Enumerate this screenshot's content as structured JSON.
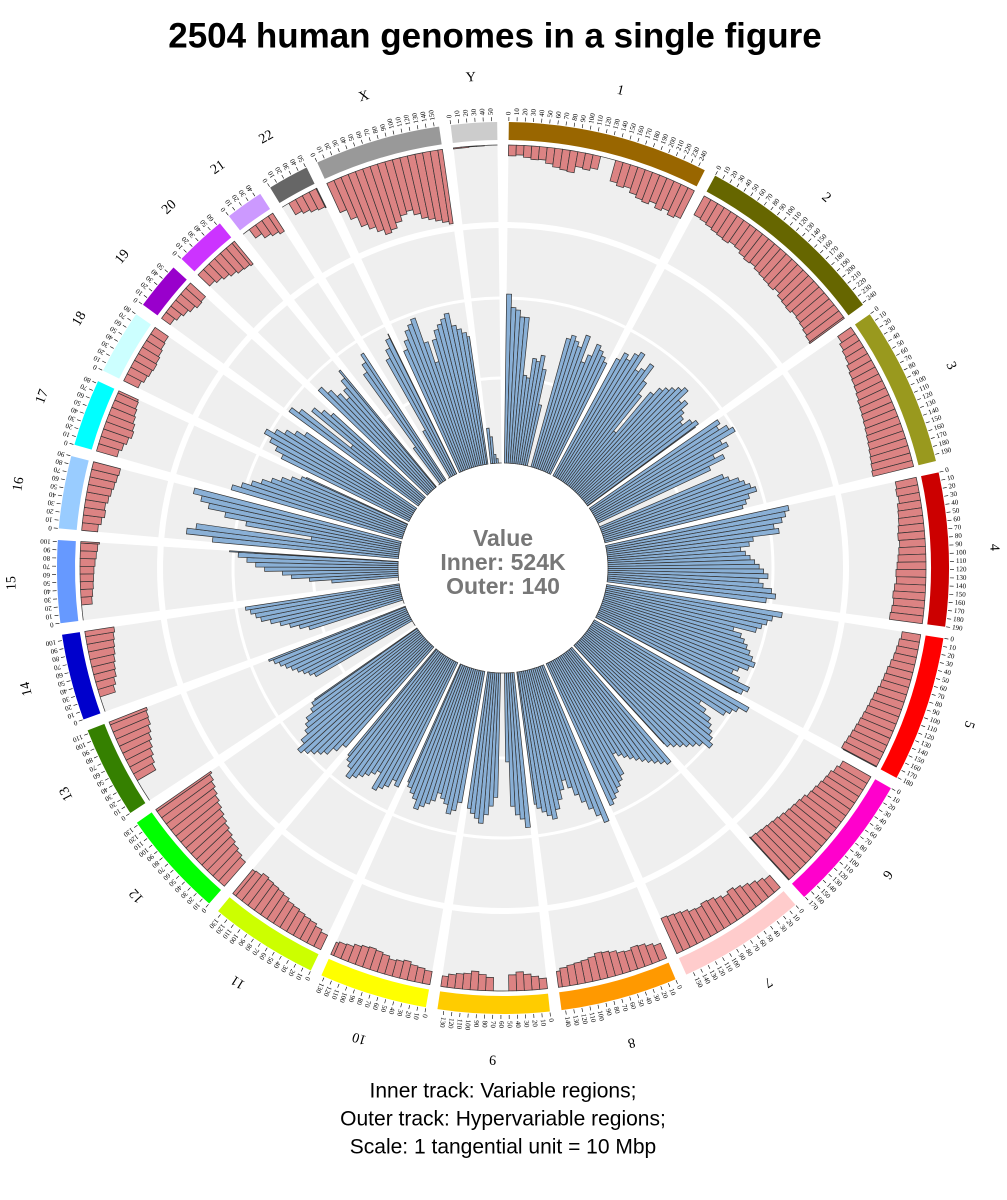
{
  "title": "2504 human genomes in a single figure",
  "chart_data": {
    "type": "circos",
    "center": {
      "title": "Value",
      "inner_scale": {
        "value": 524,
        "label": "Inner: 524K"
      },
      "outer_scale": {
        "value": 140,
        "label": "Outer: 140"
      }
    },
    "inner_color": "#8ab0d6",
    "outer_color": "#dc8383",
    "background_color": "#efefef",
    "chromosomes": [
      {
        "name": "1",
        "color": "#996600",
        "length": 249,
        "ticks": [
          0,
          10,
          20,
          30,
          40,
          50,
          60,
          70,
          80,
          90,
          100,
          110,
          120,
          130,
          140,
          150,
          160,
          170,
          180,
          190,
          200,
          210,
          220,
          230,
          240
        ],
        "inner": [
          380,
          350,
          345,
          330,
          330,
          200,
          195,
          240,
          235,
          250,
          220,
          140,
          0,
          0,
          300,
          310,
          300,
          290,
          320,
          260,
          280,
          310,
          300,
          290,
          280
        ],
        "outer": [
          20,
          18,
          22,
          25,
          24,
          30,
          35,
          38,
          40,
          28,
          30,
          25,
          0,
          0,
          40,
          45,
          42,
          50,
          55,
          58,
          52,
          60,
          55,
          62,
          58
        ]
      },
      {
        "name": "2",
        "color": "#666600",
        "length": 242,
        "ticks": [
          0,
          10,
          20,
          30,
          40,
          50,
          60,
          70,
          80,
          90,
          100,
          110,
          120,
          130,
          140,
          150,
          160,
          170,
          180,
          190,
          200,
          210,
          220,
          230,
          240
        ],
        "inner": [
          300,
          320,
          310,
          330,
          340,
          300,
          310,
          330,
          290,
          260,
          160,
          280,
          300,
          310,
          320,
          330,
          340,
          310,
          320,
          300,
          290,
          280,
          300,
          310,
          300
        ],
        "outer": [
          40,
          42,
          45,
          48,
          50,
          52,
          48,
          50,
          55,
          58,
          56,
          60,
          62,
          64,
          66,
          62,
          68,
          70,
          72,
          68,
          70,
          72,
          75,
          78,
          80
        ]
      },
      {
        "name": "3",
        "color": "#99991e",
        "length": 198,
        "ticks": [
          0,
          10,
          20,
          30,
          40,
          50,
          60,
          70,
          80,
          90,
          100,
          110,
          120,
          130,
          140,
          150,
          160,
          170,
          180,
          190
        ],
        "inner": [
          350,
          340,
          360,
          370,
          330,
          340,
          300,
          320,
          280,
          0,
          0,
          300,
          310,
          330,
          340,
          350,
          360,
          340,
          330,
          320
        ],
        "outer": [
          30,
          35,
          38,
          40,
          45,
          48,
          50,
          52,
          55,
          58,
          60,
          62,
          64,
          66,
          68,
          70,
          72,
          74,
          76,
          78
        ]
      },
      {
        "name": "4",
        "color": "#cc0000",
        "length": 190,
        "ticks": [
          0,
          10,
          20,
          30,
          40,
          50,
          60,
          70,
          80,
          90,
          100,
          110,
          120,
          130,
          140,
          150,
          160,
          170,
          180,
          190
        ],
        "inner": [
          420,
          410,
          400,
          380,
          390,
          330,
          320,
          300,
          310,
          320,
          330,
          340,
          350,
          360,
          340,
          350,
          370,
          380,
          360
        ],
        "outer": [
          40,
          42,
          40,
          44,
          45,
          46,
          48,
          50,
          48,
          50,
          52,
          54,
          56,
          55,
          58,
          60,
          58,
          60,
          62
        ]
      },
      {
        "name": "5",
        "color": "#ff0000",
        "length": 181,
        "ticks": [
          0,
          10,
          20,
          30,
          40,
          50,
          60,
          70,
          80,
          90,
          100,
          110,
          120,
          130,
          140,
          150,
          160,
          170,
          180
        ],
        "inner": [
          400,
          380,
          370,
          360,
          350,
          300,
          320,
          330,
          340,
          350,
          360,
          370,
          360,
          340,
          330,
          350,
          380,
          370,
          360
        ],
        "outer": [
          35,
          38,
          40,
          42,
          45,
          48,
          50,
          52,
          55,
          58,
          60,
          62,
          64,
          66,
          68,
          70,
          72,
          74,
          70
        ]
      },
      {
        "name": "6",
        "color": "#ff00cc",
        "length": 171,
        "ticks": [
          0,
          10,
          20,
          30,
          40,
          50,
          60,
          70,
          80,
          90,
          100,
          110,
          120,
          130,
          140,
          150,
          160,
          170
        ],
        "inner": [
          400,
          380,
          370,
          360,
          300,
          320,
          340,
          350,
          360,
          370,
          380,
          360,
          350,
          340,
          330,
          320,
          310,
          300
        ],
        "outer": [
          60,
          65,
          70,
          72,
          75,
          78,
          80,
          85,
          88,
          90,
          92,
          95,
          98,
          100,
          102,
          104,
          106,
          108
        ]
      },
      {
        "name": "7",
        "color": "#ffcccc",
        "length": 159,
        "ticks": [
          0,
          10,
          20,
          30,
          40,
          50,
          60,
          70,
          80,
          90,
          100,
          110,
          120,
          130,
          140,
          150
        ],
        "inner": [
          340,
          330,
          320,
          310,
          300,
          290,
          280,
          270,
          260,
          250,
          300,
          310,
          320,
          330,
          340,
          350
        ],
        "outer": [
          30,
          35,
          40,
          45,
          50,
          55,
          50,
          55,
          60,
          62,
          58,
          60,
          65,
          68,
          70,
          72
        ]
      },
      {
        "name": "8",
        "color": "#ff9900",
        "length": 145,
        "ticks": [
          0,
          10,
          20,
          30,
          40,
          50,
          60,
          70,
          80,
          90,
          100,
          110,
          120,
          130,
          140
        ],
        "inner": [
          380,
          360,
          340,
          320,
          300,
          280,
          260,
          280,
          300,
          320,
          340,
          330,
          320,
          310,
          300
        ],
        "outer": [
          30,
          35,
          40,
          42,
          38,
          40,
          45,
          48,
          50,
          45,
          42,
          40,
          38,
          35,
          30
        ]
      },
      {
        "name": "9",
        "color": "#ffcc00",
        "length": 138,
        "ticks": [
          0,
          10,
          20,
          30,
          40,
          50,
          60,
          70,
          80,
          90,
          100,
          110,
          120,
          130
        ],
        "inner": [
          350,
          330,
          320,
          300,
          200,
          0,
          0,
          280,
          300,
          320,
          340,
          330,
          320,
          310
        ],
        "outer": [
          20,
          25,
          30,
          35,
          30,
          0,
          0,
          25,
          30,
          35,
          30,
          28,
          25,
          20
        ]
      },
      {
        "name": "10",
        "color": "#ffff00",
        "length": 134,
        "ticks": [
          0,
          10,
          20,
          30,
          40,
          50,
          60,
          70,
          80,
          90,
          100,
          110,
          120,
          130
        ],
        "inner": [
          300,
          320,
          330,
          310,
          300,
          290,
          310,
          320,
          330,
          340,
          320,
          310,
          300,
          290
        ],
        "outer": [
          25,
          28,
          30,
          35,
          32,
          30,
          35,
          38,
          40,
          38,
          35,
          30,
          28,
          25
        ]
      },
      {
        "name": "11",
        "color": "#ccff00",
        "length": 135,
        "ticks": [
          0,
          10,
          20,
          30,
          40,
          50,
          60,
          70,
          80,
          90,
          100,
          110,
          120,
          130
        ],
        "inner": [
          310,
          300,
          320,
          330,
          340,
          300,
          310,
          320,
          330,
          340,
          350,
          330,
          320,
          310
        ],
        "outer": [
          30,
          35,
          40,
          42,
          45,
          48,
          50,
          55,
          58,
          60,
          62,
          65,
          60,
          58
        ]
      },
      {
        "name": "12",
        "color": "#00ff00",
        "length": 133,
        "ticks": [
          0,
          10,
          20,
          30,
          40,
          50,
          60,
          70,
          80,
          90,
          100,
          110,
          120,
          130
        ],
        "inner": [
          300,
          320,
          340,
          350,
          360,
          370,
          380,
          360,
          340,
          330,
          320,
          300,
          290,
          280
        ],
        "outer": [
          60,
          65,
          70,
          75,
          80,
          85,
          90,
          95,
          100,
          105,
          110,
          115,
          120,
          125
        ]
      },
      {
        "name": "13",
        "color": "#358000",
        "length": 114,
        "ticks": [
          0,
          10,
          20,
          30,
          40,
          50,
          60,
          70,
          80,
          90,
          100,
          110
        ],
        "inner": [
          0,
          0,
          0,
          250,
          260,
          270,
          280,
          290,
          300,
          310,
          320,
          330
        ],
        "outer": [
          0,
          0,
          0,
          40,
          45,
          50,
          55,
          60,
          65,
          70,
          72,
          75
        ]
      },
      {
        "name": "14",
        "color": "#0000cc",
        "length": 107,
        "ticks": [
          0,
          10,
          20,
          30,
          40,
          50,
          60,
          70,
          80,
          90,
          100
        ],
        "inner": [
          0,
          0,
          220,
          240,
          260,
          280,
          300,
          320,
          330,
          340,
          350
        ],
        "outer": [
          0,
          0,
          30,
          35,
          40,
          42,
          45,
          48,
          50,
          52,
          55
        ]
      },
      {
        "name": "15",
        "color": "#6699ff",
        "length": 102,
        "ticks": [
          0,
          10,
          20,
          30,
          40,
          50,
          60,
          70,
          80,
          90,
          100
        ],
        "inner": [
          0,
          0,
          150,
          200,
          240,
          260,
          300,
          320,
          340,
          360,
          380
        ],
        "outer": [
          0,
          0,
          20,
          22,
          24,
          25,
          26,
          28,
          30,
          32,
          35
        ]
      },
      {
        "name": "16",
        "color": "#99ccff",
        "length": 90,
        "ticks": [
          0,
          10,
          20,
          30,
          40,
          50,
          60,
          70,
          80,
          90
        ],
        "inner": [
          420,
          480,
          460,
          200,
          350,
          400,
          440,
          460,
          480
        ],
        "outer": [
          30,
          35,
          40,
          38,
          42,
          45,
          48,
          50,
          52
        ]
      },
      {
        "name": "17",
        "color": "#00ffff",
        "length": 83,
        "ticks": [
          0,
          10,
          20,
          30,
          40,
          50,
          60,
          70,
          80
        ],
        "inner": [
          400,
          380,
          360,
          340,
          320,
          300,
          280,
          260,
          250
        ],
        "outer": [
          40,
          45,
          50,
          55,
          52,
          48,
          45,
          42,
          40
        ]
      },
      {
        "name": "18",
        "color": "#ccffff",
        "length": 80,
        "ticks": [
          0,
          10,
          20,
          30,
          40,
          50,
          60,
          70,
          80
        ],
        "inner": [
          320,
          340,
          360,
          380,
          360,
          340,
          320,
          300
        ],
        "outer": [
          30,
          35,
          38,
          40,
          38,
          35,
          32,
          30
        ]
      },
      {
        "name": "19",
        "color": "#9900cc",
        "length": 59,
        "ticks": [
          0,
          10,
          20,
          30,
          40,
          50
        ],
        "inner": [
          360,
          340,
          200,
          320,
          300,
          280
        ],
        "outer": [
          20,
          25,
          30,
          35,
          40,
          38
        ]
      },
      {
        "name": "20",
        "color": "#cc33ff",
        "length": 64,
        "ticks": [
          0,
          10,
          20,
          30,
          40,
          50,
          60
        ],
        "inner": [
          340,
          320,
          300,
          280,
          300,
          320,
          340
        ],
        "outer": [
          30,
          35,
          40,
          45,
          50,
          52,
          55
        ]
      },
      {
        "name": "21",
        "color": "#cc99ff",
        "length": 47,
        "ticks": [
          0,
          10,
          20,
          30,
          40
        ],
        "inner": [
          0,
          100,
          300,
          320,
          340
        ],
        "outer": [
          0,
          20,
          30,
          35,
          40
        ]
      },
      {
        "name": "22",
        "color": "#666666",
        "length": 51,
        "ticks": [
          0,
          10,
          20,
          30,
          40,
          50
        ],
        "inner": [
          0,
          120,
          300,
          320,
          340,
          350
        ],
        "outer": [
          0,
          25,
          30,
          35,
          38,
          40
        ]
      },
      {
        "name": "X",
        "color": "#999999",
        "length": 156,
        "ticks": [
          0,
          10,
          20,
          30,
          40,
          50,
          60,
          70,
          80,
          90,
          100,
          110,
          120,
          130,
          140,
          150
        ],
        "inner": [
          300,
          320,
          340,
          350,
          360,
          300,
          250,
          300,
          320,
          330,
          340,
          350,
          320,
          310,
          300,
          290
        ],
        "outer": [
          60,
          80,
          100,
          110,
          120,
          130,
          125,
          115,
          105,
          100,
          110,
          120,
          125,
          130,
          135,
          140
        ]
      },
      {
        "name": "Y",
        "color": "#cccccc",
        "length": 57,
        "ticks": [
          0,
          10,
          20,
          30,
          40,
          50
        ],
        "inner": [
          80,
          60,
          20,
          10,
          0,
          0
        ],
        "outer": [
          2,
          2,
          1,
          1,
          0,
          0
        ]
      }
    ]
  },
  "captions": [
    "Inner track: Variable regions;",
    "Outer track: Hypervariable regions;",
    "Scale: 1 tangential unit = 10 Mbp"
  ]
}
